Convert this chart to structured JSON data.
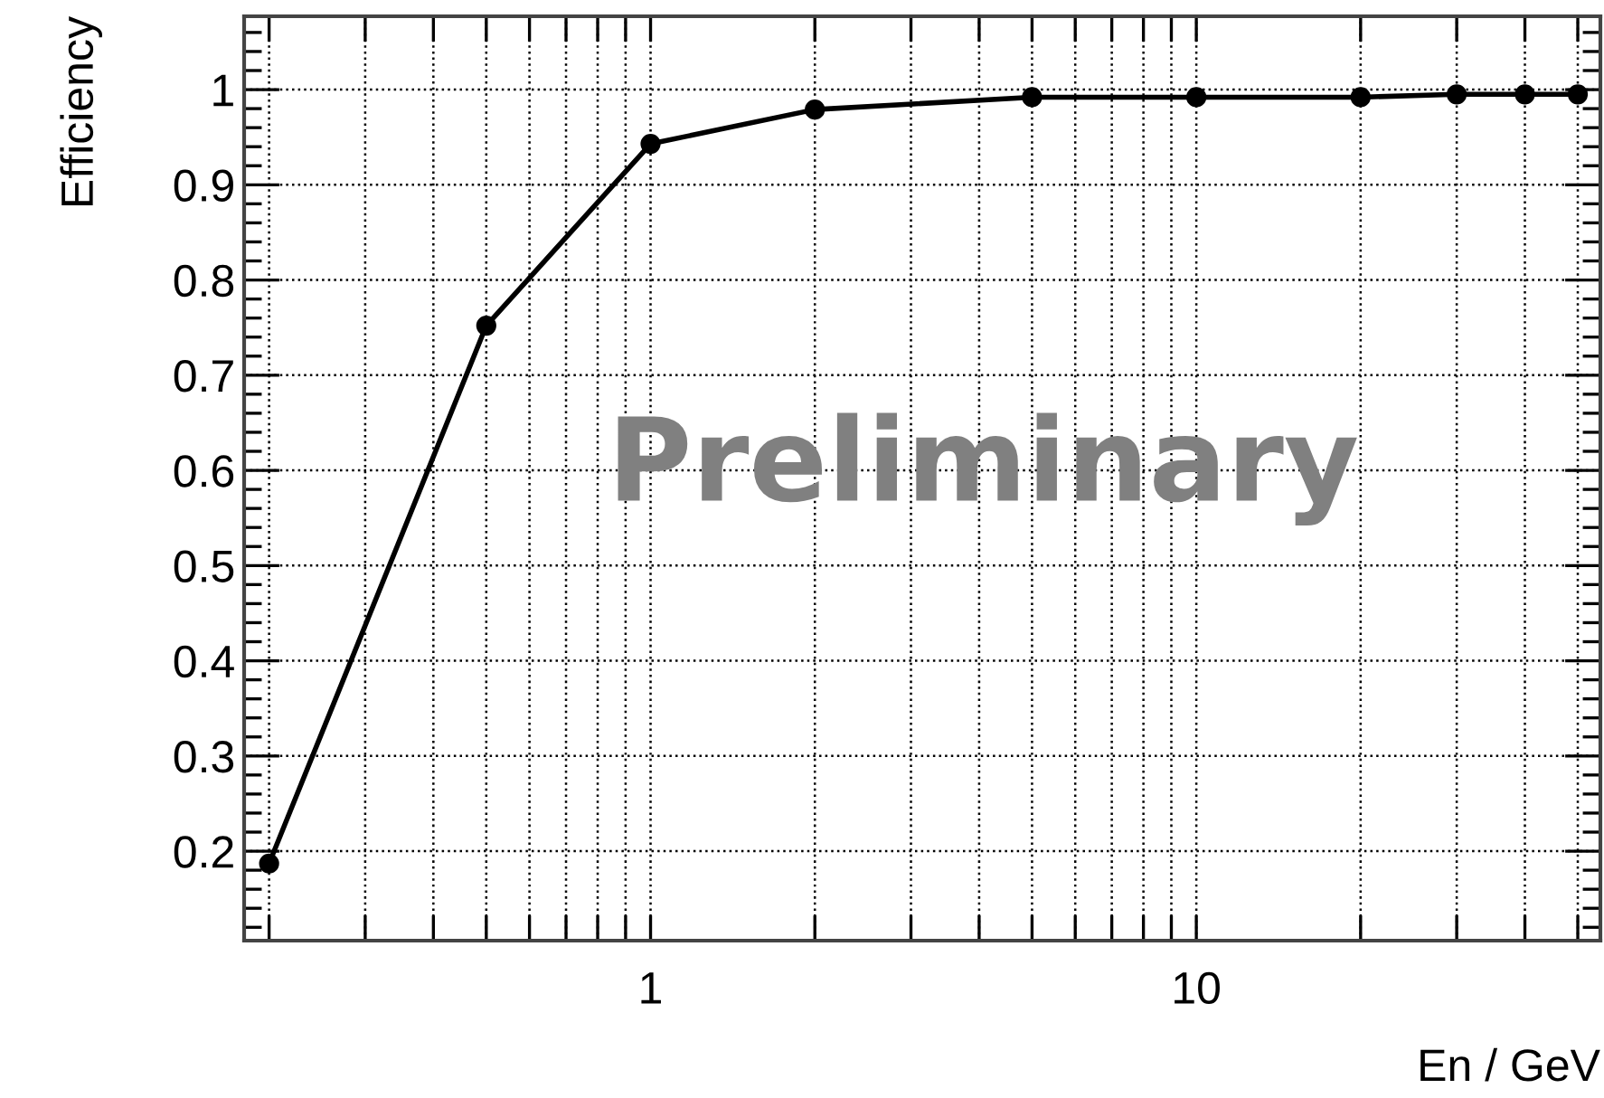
{
  "chart_data": {
    "type": "line",
    "xlabel": "En / GeV",
    "ylabel": "Efficiency",
    "x": [
      0.2,
      0.5,
      1,
      2,
      5,
      10,
      20,
      30,
      40,
      50
    ],
    "series": [
      {
        "color": "#000000",
        "values": [
          0.187,
          0.752,
          0.943,
          0.979,
          0.992,
          0.992,
          0.992,
          0.995,
          0.995,
          0.995
        ]
      }
    ],
    "log": "x",
    "xlim": [
      0.18,
      55
    ],
    "xticks": [
      1,
      10
    ],
    "ylim": [
      0.106,
      1.077
    ],
    "yticks": [
      0.2,
      0.3,
      0.4,
      0.5,
      0.6,
      0.7,
      0.8,
      0.9,
      1
    ],
    "grid": true,
    "marker": "circle",
    "line_style": "solid",
    "annotations": [
      "Preliminary"
    ]
  }
}
